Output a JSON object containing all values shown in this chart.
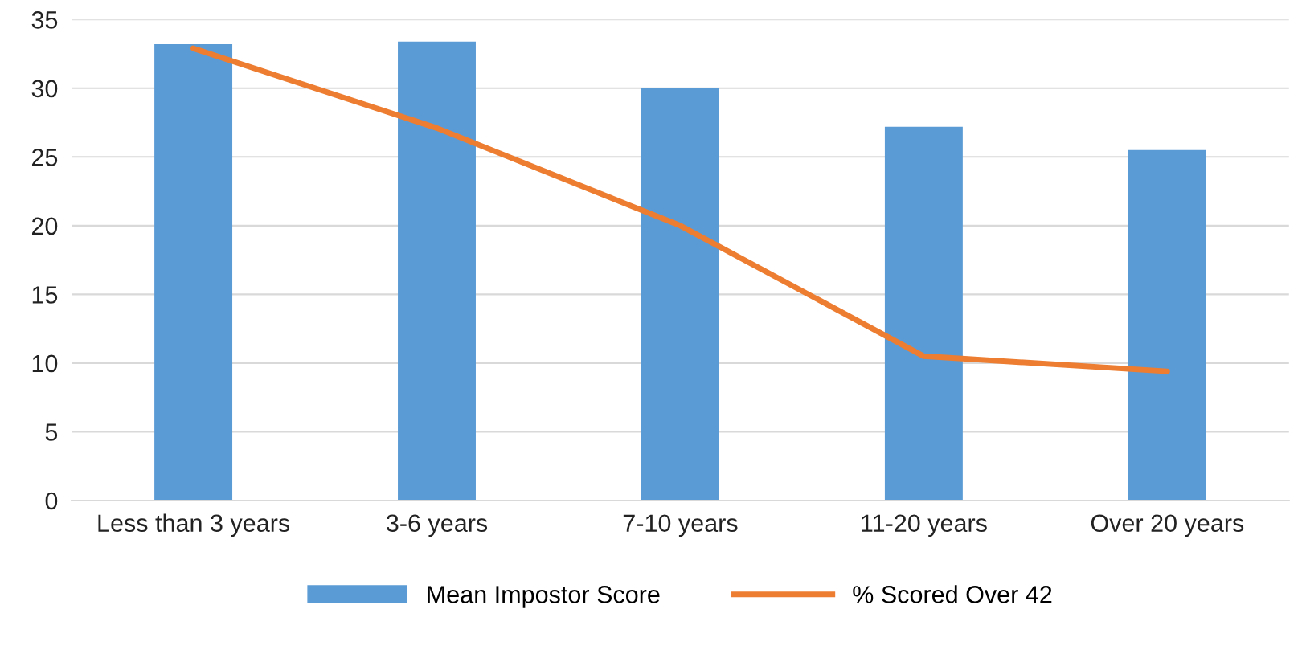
{
  "chart_data": {
    "type": "bar",
    "categories": [
      "Less than 3 years",
      "3-6 years",
      "7-10 years",
      "11-20 years",
      "Over 20 years"
    ],
    "series": [
      {
        "name": "Mean Impostor Score",
        "color": "#5b9bd5",
        "values": [
          33.2,
          33.4,
          30.0,
          27.2,
          25.5
        ]
      },
      {
        "name": "% Scored Over 42",
        "type": "line",
        "color": "#ed7d31",
        "values": [
          32.9,
          27.1,
          20.0,
          10.5,
          9.4
        ]
      }
    ],
    "ylim": [
      0,
      35
    ],
    "yticks": [
      0,
      5,
      10,
      15,
      20,
      25,
      30,
      35
    ],
    "grid": "y",
    "legend": "bottom",
    "marker": "none"
  }
}
